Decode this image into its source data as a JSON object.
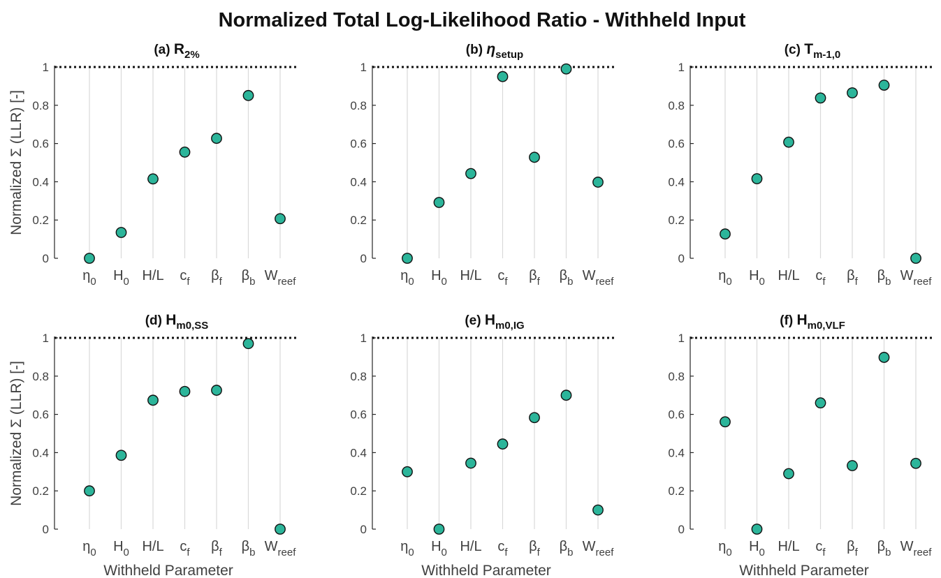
{
  "suptitle": "Normalized Total Log-Likelihood Ratio - Withheld Input",
  "ylabel": "Normalized Σ (LLR) [-]",
  "xlabel": "Withheld Parameter",
  "colors": {
    "marker_fill": "#2cb59a",
    "marker_edge": "#111111",
    "grid": "#d9d9d9",
    "reference": "#111111"
  },
  "reference_line": 1,
  "chart_data": [
    {
      "type": "scatter",
      "title": {
        "prefix": "(a)",
        "main": "R",
        "sub": "2%",
        "italic": false
      },
      "categories": [
        {
          "main": "η",
          "sub": "0"
        },
        {
          "main": "H",
          "sub": "0"
        },
        {
          "main": "H/L",
          "sub": ""
        },
        {
          "main": "c",
          "sub": "f"
        },
        {
          "main": "β",
          "sub": "f"
        },
        {
          "main": "β",
          "sub": "b"
        },
        {
          "main": "W",
          "sub": "reef"
        }
      ],
      "values": [
        0.0,
        0.135,
        0.415,
        0.555,
        0.627,
        0.851,
        0.207
      ],
      "ylim": [
        0,
        1
      ],
      "yticks": [
        0,
        0.2,
        0.4,
        0.6,
        0.8,
        1
      ],
      "ylabel": "Normalized Σ (LLR) [-]",
      "xlabel": "",
      "grid": "x"
    },
    {
      "type": "scatter",
      "title": {
        "prefix": "(b)",
        "main": "η",
        "sub": "setup",
        "italic": true
      },
      "categories": [
        {
          "main": "η",
          "sub": "0"
        },
        {
          "main": "H",
          "sub": "0"
        },
        {
          "main": "H/L",
          "sub": ""
        },
        {
          "main": "c",
          "sub": "f"
        },
        {
          "main": "β",
          "sub": "f"
        },
        {
          "main": "β",
          "sub": "b"
        },
        {
          "main": "W",
          "sub": "reef"
        }
      ],
      "values": [
        0.0,
        0.292,
        0.443,
        0.95,
        0.528,
        0.99,
        0.398
      ],
      "ylim": [
        0,
        1
      ],
      "yticks": [
        0,
        0.2,
        0.4,
        0.6,
        0.8,
        1
      ],
      "ylabel": "",
      "xlabel": "",
      "grid": "x"
    },
    {
      "type": "scatter",
      "title": {
        "prefix": "(c)",
        "main": "T",
        "sub": "m-1,0",
        "italic": false
      },
      "categories": [
        {
          "main": "η",
          "sub": "0"
        },
        {
          "main": "H",
          "sub": "0"
        },
        {
          "main": "H/L",
          "sub": ""
        },
        {
          "main": "c",
          "sub": "f"
        },
        {
          "main": "β",
          "sub": "f"
        },
        {
          "main": "β",
          "sub": "b"
        },
        {
          "main": "W",
          "sub": "reef"
        }
      ],
      "values": [
        0.127,
        0.416,
        0.607,
        0.838,
        0.865,
        0.905,
        0.0
      ],
      "ylim": [
        0,
        1
      ],
      "yticks": [
        0,
        0.2,
        0.4,
        0.6,
        0.8,
        1
      ],
      "ylabel": "",
      "xlabel": "",
      "grid": "x"
    },
    {
      "type": "scatter",
      "title": {
        "prefix": "(d)",
        "main": "H",
        "sub": "m0,SS",
        "italic": false
      },
      "categories": [
        {
          "main": "η",
          "sub": "0"
        },
        {
          "main": "H",
          "sub": "0"
        },
        {
          "main": "H/L",
          "sub": ""
        },
        {
          "main": "c",
          "sub": "f"
        },
        {
          "main": "β",
          "sub": "f"
        },
        {
          "main": "β",
          "sub": "b"
        },
        {
          "main": "W",
          "sub": "reef"
        }
      ],
      "values": [
        0.2,
        0.386,
        0.674,
        0.72,
        0.726,
        0.97,
        0.0
      ],
      "ylim": [
        0,
        1
      ],
      "yticks": [
        0,
        0.2,
        0.4,
        0.6,
        0.8,
        1
      ],
      "ylabel": "Normalized Σ (LLR) [-]",
      "xlabel": "Withheld Parameter",
      "grid": "x"
    },
    {
      "type": "scatter",
      "title": {
        "prefix": "(e)",
        "main": "H",
        "sub": "m0,IG",
        "italic": false
      },
      "categories": [
        {
          "main": "η",
          "sub": "0"
        },
        {
          "main": "H",
          "sub": "0"
        },
        {
          "main": "H/L",
          "sub": ""
        },
        {
          "main": "c",
          "sub": "f"
        },
        {
          "main": "β",
          "sub": "f"
        },
        {
          "main": "β",
          "sub": "b"
        },
        {
          "main": "W",
          "sub": "reef"
        }
      ],
      "values": [
        0.3,
        0.0,
        0.345,
        0.445,
        0.583,
        0.7,
        0.1
      ],
      "ylim": [
        0,
        1
      ],
      "yticks": [
        0,
        0.2,
        0.4,
        0.6,
        0.8,
        1
      ],
      "ylabel": "",
      "xlabel": "Withheld Parameter",
      "grid": "x"
    },
    {
      "type": "scatter",
      "title": {
        "prefix": "(f)",
        "main": "H",
        "sub": "m0,VLF",
        "italic": false
      },
      "categories": [
        {
          "main": "η",
          "sub": "0"
        },
        {
          "main": "H",
          "sub": "0"
        },
        {
          "main": "H/L",
          "sub": ""
        },
        {
          "main": "c",
          "sub": "f"
        },
        {
          "main": "β",
          "sub": "f"
        },
        {
          "main": "β",
          "sub": "b"
        },
        {
          "main": "W",
          "sub": "reef"
        }
      ],
      "values": [
        0.561,
        0.0,
        0.29,
        0.66,
        0.332,
        0.898,
        0.344
      ],
      "ylim": [
        0,
        1
      ],
      "yticks": [
        0,
        0.2,
        0.4,
        0.6,
        0.8,
        1
      ],
      "ylabel": "",
      "xlabel": "Withheld Parameter",
      "grid": "x"
    }
  ]
}
